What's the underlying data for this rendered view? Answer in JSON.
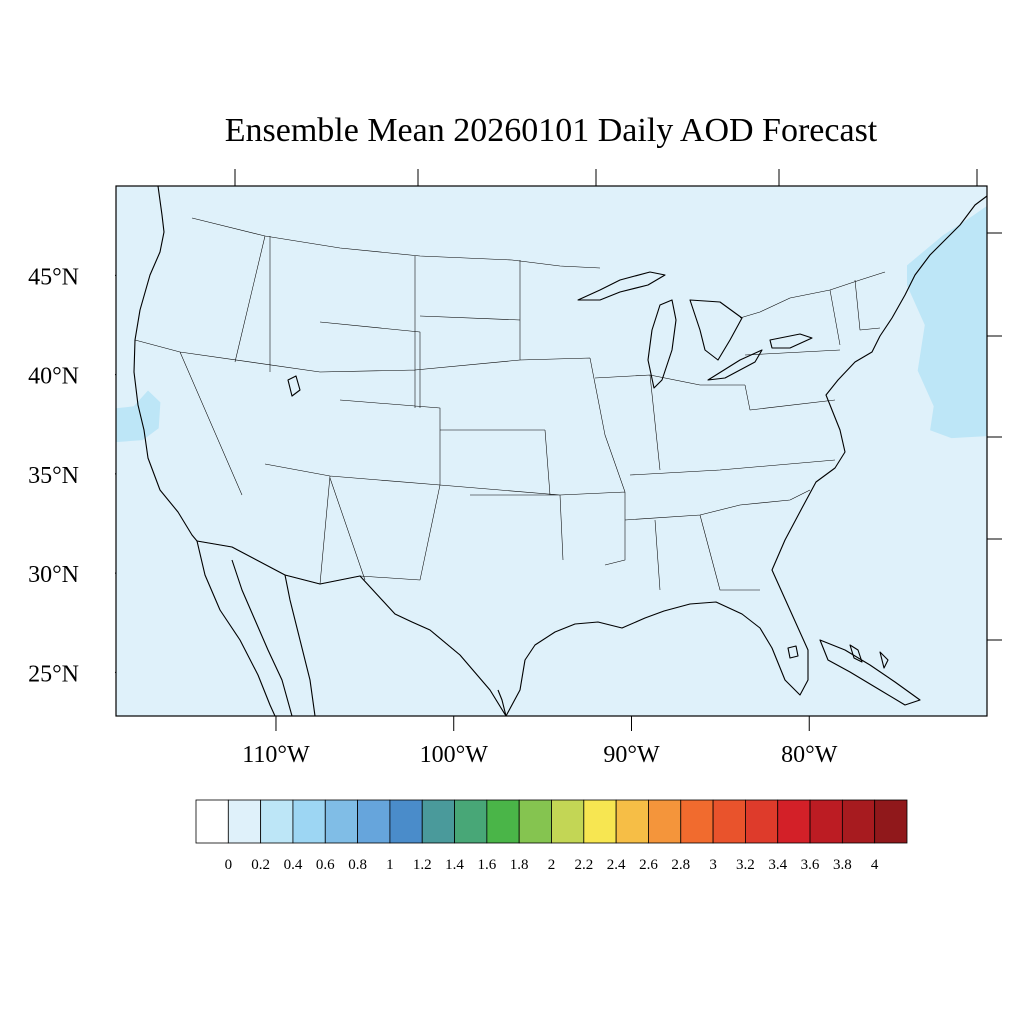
{
  "title": "Ensemble Mean 20260101 Daily AOD Forecast",
  "map": {
    "lon_range": [
      -119,
      -70
    ],
    "lat_range": [
      22.8,
      49.5
    ],
    "background_color": "#dff1fa",
    "lat_ticks": [
      {
        "value": 45,
        "label": "45°N"
      },
      {
        "value": 40,
        "label": "40°N"
      },
      {
        "value": 35,
        "label": "35°N"
      },
      {
        "value": 30,
        "label": "30°N"
      },
      {
        "value": 25,
        "label": "25°N"
      }
    ],
    "lon_ticks": [
      {
        "value": -110,
        "label": "110°W"
      },
      {
        "value": -100,
        "label": "100°W"
      },
      {
        "value": -90,
        "label": "90°W"
      },
      {
        "value": -80,
        "label": "80°W"
      }
    ],
    "field_regions": [
      {
        "name": "atlantic-aod-patch",
        "aod_bin": "0.2-0.4",
        "color": "#bde6f7",
        "polygon": [
          [
            -74.5,
            44.5
          ],
          [
            -73.5,
            42.5
          ],
          [
            -73.9,
            40.2
          ],
          [
            -73,
            38.4
          ],
          [
            -73.2,
            37.2
          ],
          [
            -72,
            36.8
          ],
          [
            -70,
            36.9
          ],
          [
            -70,
            48.5
          ],
          [
            -70.8,
            48
          ],
          [
            -72.5,
            47
          ],
          [
            -74.5,
            45.5
          ]
        ]
      },
      {
        "name": "pacific-aod-patch",
        "aod_bin": "0.2-0.4",
        "color": "#bde6f7",
        "polygon": [
          [
            -119,
            38.3
          ],
          [
            -118,
            38.4
          ],
          [
            -117.2,
            39.2
          ],
          [
            -116.5,
            38.6
          ],
          [
            -116.6,
            37.3
          ],
          [
            -117.5,
            36.7
          ],
          [
            -119,
            36.6
          ]
        ]
      }
    ]
  },
  "colorbar": {
    "colors": [
      "#ffffff",
      "#dff1fa",
      "#bde6f7",
      "#9dd6f3",
      "#80bde6",
      "#66a5dc",
      "#4a8cca",
      "#4a9a9b",
      "#48a777",
      "#4ab548",
      "#85c450",
      "#c3d655",
      "#f7e651",
      "#f6be46",
      "#f4953b",
      "#f16b2e",
      "#e9532c",
      "#de3b2b",
      "#d32028",
      "#bc1c23",
      "#a71b1f",
      "#90181b"
    ],
    "labels": [
      "0",
      "0.2",
      "0.4",
      "0.6",
      "0.8",
      "1",
      "1.2",
      "1.4",
      "1.6",
      "1.8",
      "2",
      "2.2",
      "2.4",
      "2.6",
      "2.8",
      "3",
      "3.2",
      "3.4",
      "3.6",
      "3.8",
      "4"
    ]
  }
}
